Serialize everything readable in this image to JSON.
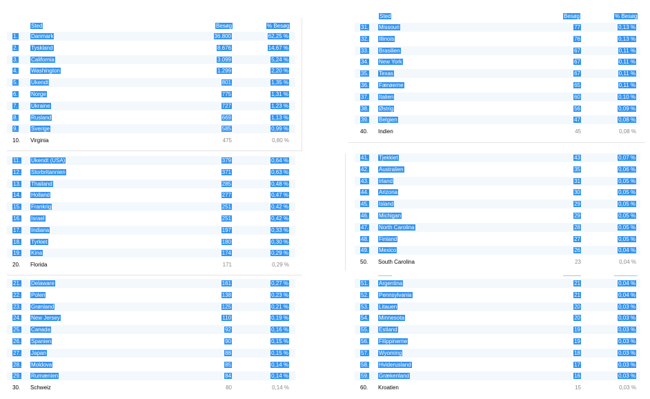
{
  "headers": {
    "place": "Sted",
    "visits": "Besøg",
    "pct_visits": "% Besøg"
  },
  "blocks": [
    {
      "rows": [
        {
          "rank": "1.",
          "place": "Danmark",
          "visits": "36.800",
          "pct": "62,25 %",
          "sel": true
        },
        {
          "rank": "2.",
          "place": "Tyskland",
          "visits": "8.676",
          "pct": "14,67 %",
          "sel": true
        },
        {
          "rank": "3.",
          "place": "California",
          "visits": "3.099",
          "pct": "5,24 %",
          "sel": true
        },
        {
          "rank": "4.",
          "place": "Washington",
          "visits": "1.299",
          "pct": "2,20 %",
          "sel": true
        },
        {
          "rank": "5.",
          "place": "Ukendt",
          "visits": "801",
          "pct": "1,35 %",
          "sel": true
        },
        {
          "rank": "6.",
          "place": "Norge",
          "visits": "775",
          "pct": "1,31 %",
          "sel": true
        },
        {
          "rank": "7.",
          "place": "Ukraine",
          "visits": "727",
          "pct": "1,23 %",
          "sel": true
        },
        {
          "rank": "8.",
          "place": "Rusland",
          "visits": "669",
          "pct": "1,13 %",
          "sel": true
        },
        {
          "rank": "9.",
          "place": "Sverige",
          "visits": "585",
          "pct": "0,99 %",
          "sel": true
        },
        {
          "rank": "10.",
          "place": "Virginia",
          "visits": "475",
          "pct": "0,80 %",
          "sel": false
        }
      ]
    },
    {
      "rows": [
        {
          "rank": "11.",
          "place": "Ukendt (USA)",
          "visits": "379",
          "pct": "0,64 %",
          "sel": true
        },
        {
          "rank": "12.",
          "place": "Storbritannien",
          "visits": "371",
          "pct": "0,63 %",
          "sel": true
        },
        {
          "rank": "13.",
          "place": "Thailand",
          "visits": "285",
          "pct": "0,48 %",
          "sel": true
        },
        {
          "rank": "14.",
          "place": "Holland",
          "visits": "277",
          "pct": "0,47 %",
          "sel": true
        },
        {
          "rank": "15.",
          "place": "Frankrig",
          "visits": "251",
          "pct": "0,42 %",
          "sel": true
        },
        {
          "rank": "16.",
          "place": "Israel",
          "visits": "251",
          "pct": "0,42 %",
          "sel": true
        },
        {
          "rank": "17.",
          "place": "Indiana",
          "visits": "197",
          "pct": "0,33 %",
          "sel": true
        },
        {
          "rank": "18.",
          "place": "Tyrkiet",
          "visits": "180",
          "pct": "0,30 %",
          "sel": true
        },
        {
          "rank": "19.",
          "place": "Kina",
          "visits": "174",
          "pct": "0,29 %",
          "sel": true
        },
        {
          "rank": "20.",
          "place": "Florida",
          "visits": "171",
          "pct": "0,29 %",
          "sel": false
        }
      ]
    },
    {
      "rows": [
        {
          "rank": "21.",
          "place": "Delaware",
          "visits": "161",
          "pct": "0,27 %",
          "sel": true
        },
        {
          "rank": "22.",
          "place": "Polen",
          "visits": "138",
          "pct": "0,23 %",
          "sel": true
        },
        {
          "rank": "23.",
          "place": "Grønland",
          "visits": "125",
          "pct": "0,21 %",
          "sel": true
        },
        {
          "rank": "24.",
          "place": "New Jersey",
          "visits": "110",
          "pct": "0,19 %",
          "sel": true
        },
        {
          "rank": "25.",
          "place": "Canada",
          "visits": "92",
          "pct": "0,16 %",
          "sel": true
        },
        {
          "rank": "26.",
          "place": "Spanien",
          "visits": "90",
          "pct": "0,15 %",
          "sel": true
        },
        {
          "rank": "27.",
          "place": "Japan",
          "visits": "88",
          "pct": "0,15 %",
          "sel": true
        },
        {
          "rank": "28.",
          "place": "Moldova",
          "visits": "85",
          "pct": "0,14 %",
          "sel": true
        },
        {
          "rank": "29.",
          "place": "Rumænien",
          "visits": "84",
          "pct": "0,14 %",
          "sel": true
        },
        {
          "rank": "30.",
          "place": "Schweiz",
          "visits": "80",
          "pct": "0,14 %",
          "sel": false
        }
      ]
    },
    {
      "rows": [
        {
          "rank": "31.",
          "place": "Missouri",
          "visits": "77",
          "pct": "0,13 %",
          "sel": true
        },
        {
          "rank": "32.",
          "place": "Illinois",
          "visits": "76",
          "pct": "0,13 %",
          "sel": true
        },
        {
          "rank": "33.",
          "place": "Brasilien",
          "visits": "67",
          "pct": "0,11 %",
          "sel": true
        },
        {
          "rank": "34.",
          "place": "New York",
          "visits": "67",
          "pct": "0,11 %",
          "sel": true
        },
        {
          "rank": "35.",
          "place": "Texas",
          "visits": "67",
          "pct": "0,11 %",
          "sel": true
        },
        {
          "rank": "36.",
          "place": "Færøerne",
          "visits": "65",
          "pct": "0,11 %",
          "sel": true
        },
        {
          "rank": "37.",
          "place": "Italien",
          "visits": "60",
          "pct": "0,10 %",
          "sel": true
        },
        {
          "rank": "38.",
          "place": "Østrig",
          "visits": "56",
          "pct": "0,09 %",
          "sel": true
        },
        {
          "rank": "39.",
          "place": "Belgien",
          "visits": "47",
          "pct": "0,08 %",
          "sel": true
        },
        {
          "rank": "40.",
          "place": "Indien",
          "visits": "45",
          "pct": "0,08 %",
          "sel": false
        }
      ]
    },
    {
      "rows": [
        {
          "rank": "41.",
          "place": "Tjekkiet",
          "visits": "43",
          "pct": "0,07 %",
          "sel": true
        },
        {
          "rank": "42.",
          "place": "Australien",
          "visits": "35",
          "pct": "0,06 %",
          "sel": true
        },
        {
          "rank": "43.",
          "place": "Irland",
          "visits": "31",
          "pct": "0,05 %",
          "sel": true
        },
        {
          "rank": "44.",
          "place": "Arizona",
          "visits": "30",
          "pct": "0,05 %",
          "sel": true
        },
        {
          "rank": "45.",
          "place": "Island",
          "visits": "29",
          "pct": "0,05 %",
          "sel": true
        },
        {
          "rank": "46.",
          "place": "Michigan",
          "visits": "29",
          "pct": "0,05 %",
          "sel": true
        },
        {
          "rank": "47.",
          "place": "North Carolina",
          "visits": "28",
          "pct": "0,05 %",
          "sel": true
        },
        {
          "rank": "48.",
          "place": "Finland",
          "visits": "27",
          "pct": "0,05 %",
          "sel": true
        },
        {
          "rank": "49.",
          "place": "Mexico",
          "visits": "26",
          "pct": "0,04 %",
          "sel": true
        },
        {
          "rank": "50.",
          "place": "South Carolina",
          "visits": "23",
          "pct": "0,04 %",
          "sel": false
        }
      ]
    },
    {
      "rows": [
        {
          "rank": "51.",
          "place": "Argentina",
          "visits": "21",
          "pct": "0,04 %",
          "sel": true
        },
        {
          "rank": "52.",
          "place": "Pennsylvania",
          "visits": "21",
          "pct": "0,04 %",
          "sel": true
        },
        {
          "rank": "53.",
          "place": "Litauen",
          "visits": "20",
          "pct": "0,03 %",
          "sel": true
        },
        {
          "rank": "54.",
          "place": "Minnesota",
          "visits": "20",
          "pct": "0,03 %",
          "sel": true
        },
        {
          "rank": "55.",
          "place": "Estland",
          "visits": "19",
          "pct": "0,03 %",
          "sel": true
        },
        {
          "rank": "56.",
          "place": "Filippinerne",
          "visits": "19",
          "pct": "0,03 %",
          "sel": true
        },
        {
          "rank": "57.",
          "place": "Wyoming",
          "visits": "18",
          "pct": "0,03 %",
          "sel": true
        },
        {
          "rank": "58.",
          "place": "Hviderusland",
          "visits": "17",
          "pct": "0,03 %",
          "sel": true
        },
        {
          "rank": "59.",
          "place": "Grækenland",
          "visits": "16",
          "pct": "0,03 %",
          "sel": true
        },
        {
          "rank": "60.",
          "place": "Kroatien",
          "visits": "15",
          "pct": "0,03 %",
          "sel": false
        }
      ]
    }
  ]
}
